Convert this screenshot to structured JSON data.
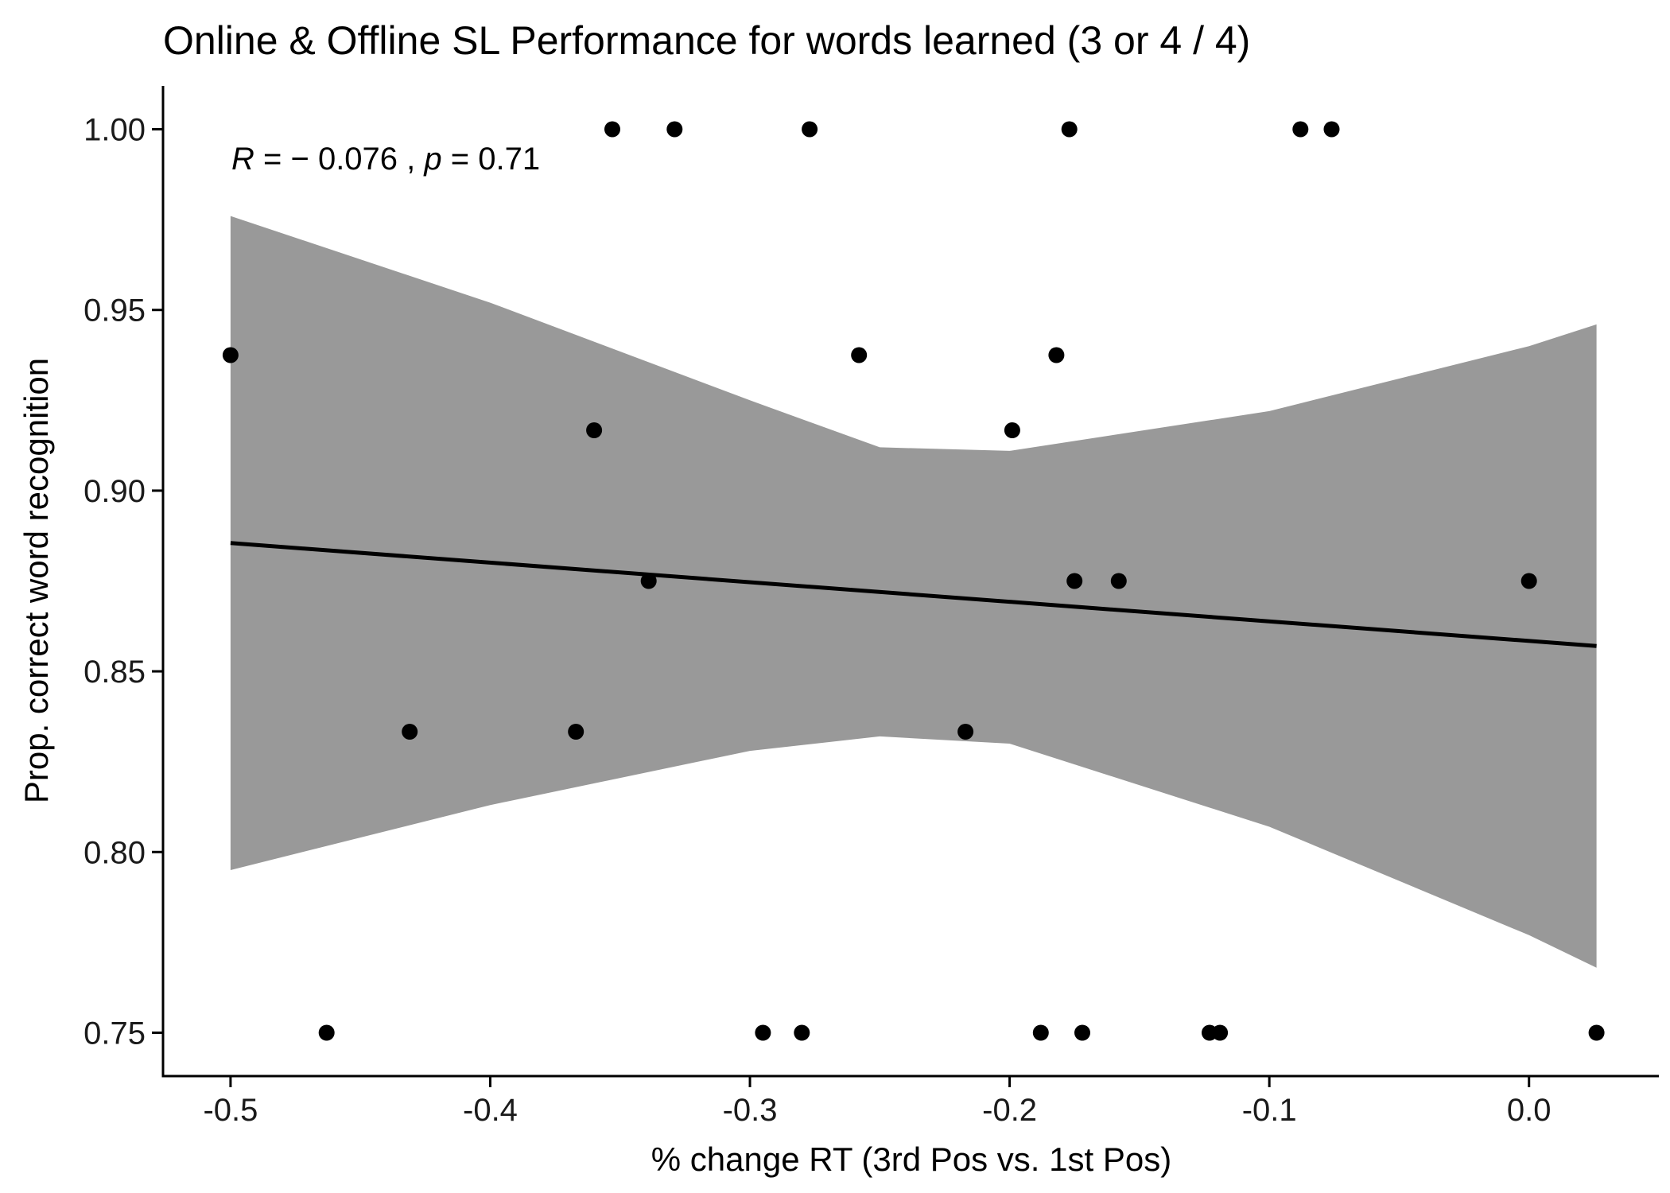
{
  "chart_data": {
    "type": "scatter",
    "title": "Online & Offline SL Performance for words learned (3 or 4 / 4)",
    "xlabel": "% change RT (3rd Pos vs. 1st Pos)",
    "ylabel": "Prop. correct word recognition",
    "xlim": [
      -0.526,
      0.05
    ],
    "ylim": [
      0.738,
      1.012
    ],
    "xticks": [
      -0.5,
      -0.4,
      -0.3,
      -0.2,
      -0.1,
      0.0
    ],
    "xtick_labels": [
      "-0.5",
      "-0.4",
      "-0.3",
      "-0.2",
      "-0.1",
      "0.0"
    ],
    "yticks": [
      0.75,
      0.8,
      0.85,
      0.9,
      0.95,
      1.0
    ],
    "ytick_labels": [
      "0.75",
      "0.80",
      "0.85",
      "0.90",
      "0.95",
      "1.00"
    ],
    "grid": false,
    "annotation": {
      "r_symbol": "R",
      "r_value": " = − 0.076 , ",
      "p_symbol": "p",
      "p_value": " = 0.71"
    },
    "points": [
      {
        "x": -0.353,
        "y": 1.0
      },
      {
        "x": -0.329,
        "y": 1.0
      },
      {
        "x": -0.277,
        "y": 1.0
      },
      {
        "x": -0.177,
        "y": 1.0
      },
      {
        "x": -0.088,
        "y": 1.0
      },
      {
        "x": -0.076,
        "y": 1.0
      },
      {
        "x": -0.5,
        "y": 0.9375
      },
      {
        "x": -0.258,
        "y": 0.9375
      },
      {
        "x": -0.182,
        "y": 0.9375
      },
      {
        "x": -0.36,
        "y": 0.9167
      },
      {
        "x": -0.199,
        "y": 0.9167
      },
      {
        "x": -0.339,
        "y": 0.875
      },
      {
        "x": -0.175,
        "y": 0.875
      },
      {
        "x": -0.158,
        "y": 0.875
      },
      {
        "x": 0.0,
        "y": 0.875
      },
      {
        "x": -0.431,
        "y": 0.8333
      },
      {
        "x": -0.367,
        "y": 0.8333
      },
      {
        "x": -0.217,
        "y": 0.8333
      },
      {
        "x": -0.463,
        "y": 0.75
      },
      {
        "x": -0.295,
        "y": 0.75
      },
      {
        "x": -0.28,
        "y": 0.75
      },
      {
        "x": -0.188,
        "y": 0.75
      },
      {
        "x": -0.172,
        "y": 0.75
      },
      {
        "x": -0.123,
        "y": 0.75
      },
      {
        "x": -0.119,
        "y": 0.75
      },
      {
        "x": 0.026,
        "y": 0.75
      }
    ],
    "fit_line": {
      "x": [
        -0.5,
        0.026
      ],
      "y": [
        0.8855,
        0.857
      ]
    },
    "confidence_band": {
      "x": [
        -0.5,
        -0.4,
        -0.3,
        -0.25,
        -0.2,
        -0.1,
        0.0,
        0.026
      ],
      "upper": [
        0.976,
        0.952,
        0.925,
        0.912,
        0.911,
        0.922,
        0.94,
        0.946
      ],
      "lower": [
        0.795,
        0.813,
        0.828,
        0.832,
        0.83,
        0.807,
        0.777,
        0.768
      ]
    }
  }
}
